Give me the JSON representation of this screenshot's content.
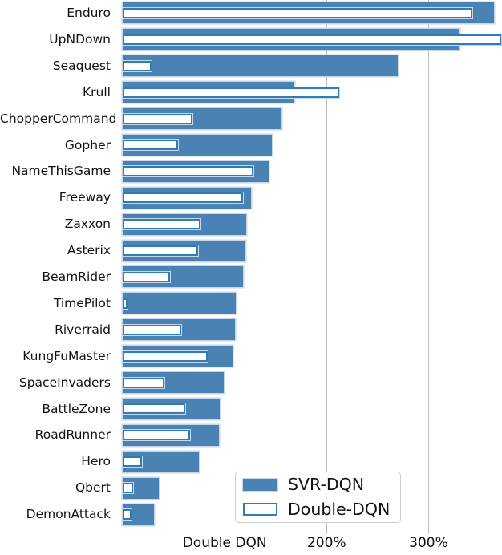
{
  "chart_data": {
    "type": "bar",
    "orientation": "horizontal",
    "categories": [
      "Enduro",
      "UpNDown",
      "Seaquest",
      "Krull",
      "ChopperCommand",
      "Gopher",
      "NameThisGame",
      "Freeway",
      "Zaxxon",
      "Asterix",
      "BeamRider",
      "TimePilot",
      "Riverraid",
      "KungFuMaster",
      "SpaceInvaders",
      "BattleZone",
      "RoadRunner",
      "Hero",
      "Qbert",
      "DemonAttack"
    ],
    "series": [
      {
        "name": "SVR-DQN",
        "style": "solid",
        "values": [
          364,
          330,
          270,
          168,
          156,
          146,
          143,
          126,
          121,
          120,
          118,
          111,
          110,
          108,
          99,
          95,
          94,
          75,
          35,
          31
        ]
      },
      {
        "name": "Double-DQN",
        "style": "outline",
        "values": [
          343,
          371,
          28,
          212,
          68,
          54,
          128,
          118,
          76,
          74,
          46,
          4,
          57,
          83,
          41,
          61,
          66,
          19,
          10,
          9
        ]
      }
    ],
    "xlabel": "Double DQN",
    "x_ticks": [
      {
        "value": 200,
        "label": "200%"
      },
      {
        "value": 300,
        "label": "300%"
      }
    ],
    "xlim": [
      0,
      372
    ],
    "unit": "%",
    "reference_line": {
      "value": 100,
      "style": "dashed",
      "label": "Double DQN"
    },
    "legend": {
      "position": "lower right",
      "entries": [
        "SVR-DQN",
        "Double-DQN"
      ]
    },
    "grid": "vertical-only",
    "colors": {
      "bar_fill": "#4a82b4",
      "bar_edge": "#c7d6e9",
      "outline_border": "#2e7db6",
      "outline_fill": "#ffffff",
      "grid": "#bdbdbd",
      "dashed_line": "#a6a6a6",
      "text": "#111111",
      "legend_border": "#cccccc"
    }
  }
}
